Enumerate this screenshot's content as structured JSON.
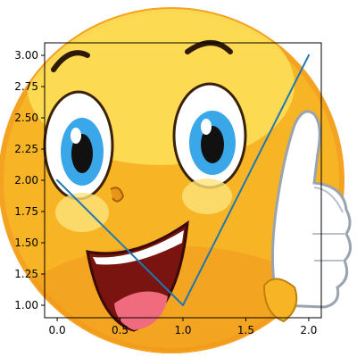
{
  "chart_data": {
    "type": "line",
    "background_image": "laughing-emoji-giving-thumbs-up",
    "series": [
      {
        "x": [
          0,
          1,
          2
        ],
        "y": [
          2,
          1,
          3
        ]
      }
    ],
    "xlim": [
      -0.1,
      2.1
    ],
    "ylim": [
      0.9,
      3.1
    ],
    "x_ticks": [
      "0.0",
      "0.5",
      "1.0",
      "1.5",
      "2.0"
    ],
    "y_ticks": [
      "1.00",
      "1.25",
      "1.50",
      "1.75",
      "2.00",
      "2.25",
      "2.50",
      "2.75",
      "3.00"
    ],
    "grid": false,
    "line_color": "#1f77b4"
  }
}
